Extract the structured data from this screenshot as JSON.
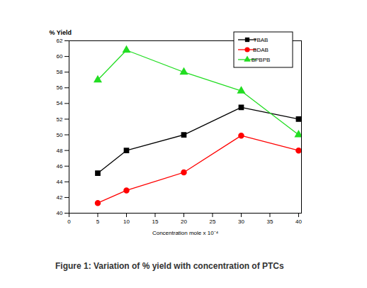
{
  "chart_data": {
    "type": "line",
    "title": "Figure 1: Variation of % yield with concentration of PTCs",
    "x_label": "Concentration mole x 10⁻⁴",
    "y_label": "% Yield",
    "x": [
      5,
      10,
      20,
      30,
      40
    ],
    "series": [
      {
        "name": "TBAB",
        "color": "#000000",
        "marker": "square",
        "values": [
          45.1,
          48.0,
          50.0,
          53.5,
          52.0
        ]
      },
      {
        "name": "BDAB",
        "color": "#ff0000",
        "marker": "circle",
        "values": [
          41.3,
          42.9,
          45.2,
          49.9,
          48.0
        ]
      },
      {
        "name": "BPBPB",
        "color": "#22dd22",
        "marker": "triangle",
        "values": [
          57.0,
          60.8,
          58.0,
          55.6,
          50.0
        ]
      }
    ],
    "xlim": [
      0,
      40.5
    ],
    "xticks": [
      0,
      5,
      10,
      15,
      20,
      25,
      30,
      35,
      40
    ],
    "ylim": [
      40,
      62
    ],
    "yticks": [
      40,
      42,
      44,
      46,
      48,
      50,
      52,
      54,
      56,
      58,
      60,
      62
    ],
    "grid": false,
    "legend": "top-right"
  }
}
